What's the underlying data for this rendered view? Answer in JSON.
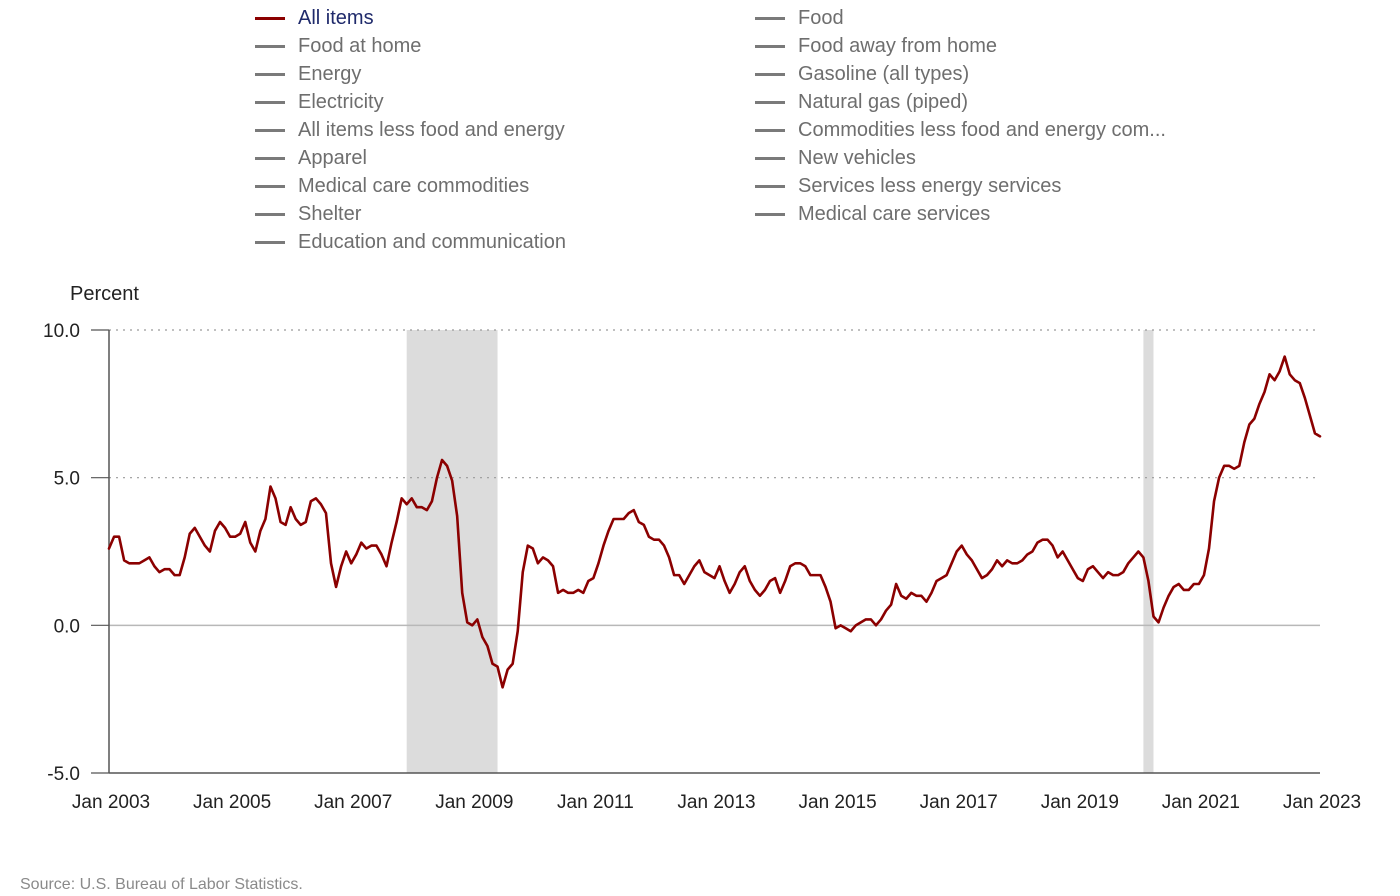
{
  "legend": [
    {
      "label": "All items",
      "active": true
    },
    {
      "label": "Food at home",
      "active": false
    },
    {
      "label": "Energy",
      "active": false
    },
    {
      "label": "Electricity",
      "active": false
    },
    {
      "label": "All items less food and energy",
      "active": false
    },
    {
      "label": "Apparel",
      "active": false
    },
    {
      "label": "Medical care commodities",
      "active": false
    },
    {
      "label": "Shelter",
      "active": false
    },
    {
      "label": "Education and communication",
      "active": false
    },
    {
      "label": "Food",
      "active": false
    },
    {
      "label": "Food away from home",
      "active": false
    },
    {
      "label": "Gasoline (all types)",
      "active": false
    },
    {
      "label": "Natural gas (piped)",
      "active": false
    },
    {
      "label": "Commodities less food and energy com...",
      "active": false
    },
    {
      "label": "New vehicles",
      "active": false
    },
    {
      "label": "Services less energy services",
      "active": false
    },
    {
      "label": "Medical care services",
      "active": false
    }
  ],
  "source": "Source: U.S. Bureau of Labor Statistics.",
  "colors": {
    "series": "#8b0000",
    "legend_inactive": "#7a7a7a",
    "recession_shade": "#dcdcdc",
    "gridline": "#9a9a9a",
    "zero_line": "#b8b8b8"
  },
  "chart_data": {
    "type": "line",
    "ylabel": "Percent",
    "ylim": [
      -5,
      10
    ],
    "yticks": [
      {
        "value": 10,
        "label": "10.0"
      },
      {
        "value": 5,
        "label": "5.0"
      },
      {
        "value": 0,
        "label": "0.0"
      },
      {
        "value": -5,
        "label": "-5.0"
      }
    ],
    "xlim": [
      "2003-01",
      "2023-01"
    ],
    "xticks": [
      "Jan 2003",
      "Jan 2005",
      "Jan 2007",
      "Jan 2009",
      "Jan 2011",
      "Jan 2013",
      "Jan 2015",
      "Jan 2017",
      "Jan 2019",
      "Jan 2021",
      "Jan 2023"
    ],
    "grid": "horizontal dotted at 5.0 and 10.0",
    "recessions": [
      {
        "start": "2007-12",
        "end": "2009-06"
      },
      {
        "start": "2020-02",
        "end": "2020-04"
      }
    ],
    "series": [
      {
        "name": "All items",
        "x": [
          "2003-01",
          "2003-02",
          "2003-03",
          "2003-04",
          "2003-05",
          "2003-06",
          "2003-07",
          "2003-08",
          "2003-09",
          "2003-10",
          "2003-11",
          "2003-12",
          "2004-01",
          "2004-02",
          "2004-03",
          "2004-04",
          "2004-05",
          "2004-06",
          "2004-07",
          "2004-08",
          "2004-09",
          "2004-10",
          "2004-11",
          "2004-12",
          "2005-01",
          "2005-02",
          "2005-03",
          "2005-04",
          "2005-05",
          "2005-06",
          "2005-07",
          "2005-08",
          "2005-09",
          "2005-10",
          "2005-11",
          "2005-12",
          "2006-01",
          "2006-02",
          "2006-03",
          "2006-04",
          "2006-05",
          "2006-06",
          "2006-07",
          "2006-08",
          "2006-09",
          "2006-10",
          "2006-11",
          "2006-12",
          "2007-01",
          "2007-02",
          "2007-03",
          "2007-04",
          "2007-05",
          "2007-06",
          "2007-07",
          "2007-08",
          "2007-09",
          "2007-10",
          "2007-11",
          "2007-12",
          "2008-01",
          "2008-02",
          "2008-03",
          "2008-04",
          "2008-05",
          "2008-06",
          "2008-07",
          "2008-08",
          "2008-09",
          "2008-10",
          "2008-11",
          "2008-12",
          "2009-01",
          "2009-02",
          "2009-03",
          "2009-04",
          "2009-05",
          "2009-06",
          "2009-07",
          "2009-08",
          "2009-09",
          "2009-10",
          "2009-11",
          "2009-12",
          "2010-01",
          "2010-02",
          "2010-03",
          "2010-04",
          "2010-05",
          "2010-06",
          "2010-07",
          "2010-08",
          "2010-09",
          "2010-10",
          "2010-11",
          "2010-12",
          "2011-01",
          "2011-02",
          "2011-03",
          "2011-04",
          "2011-05",
          "2011-06",
          "2011-07",
          "2011-08",
          "2011-09",
          "2011-10",
          "2011-11",
          "2011-12",
          "2012-01",
          "2012-02",
          "2012-03",
          "2012-04",
          "2012-05",
          "2012-06",
          "2012-07",
          "2012-08",
          "2012-09",
          "2012-10",
          "2012-11",
          "2012-12",
          "2013-01",
          "2013-02",
          "2013-03",
          "2013-04",
          "2013-05",
          "2013-06",
          "2013-07",
          "2013-08",
          "2013-09",
          "2013-10",
          "2013-11",
          "2013-12",
          "2014-01",
          "2014-02",
          "2014-03",
          "2014-04",
          "2014-05",
          "2014-06",
          "2014-07",
          "2014-08",
          "2014-09",
          "2014-10",
          "2014-11",
          "2014-12",
          "2015-01",
          "2015-02",
          "2015-03",
          "2015-04",
          "2015-05",
          "2015-06",
          "2015-07",
          "2015-08",
          "2015-09",
          "2015-10",
          "2015-11",
          "2015-12",
          "2016-01",
          "2016-02",
          "2016-03",
          "2016-04",
          "2016-05",
          "2016-06",
          "2016-07",
          "2016-08",
          "2016-09",
          "2016-10",
          "2016-11",
          "2016-12",
          "2017-01",
          "2017-02",
          "2017-03",
          "2017-04",
          "2017-05",
          "2017-06",
          "2017-07",
          "2017-08",
          "2017-09",
          "2017-10",
          "2017-11",
          "2017-12",
          "2018-01",
          "2018-02",
          "2018-03",
          "2018-04",
          "2018-05",
          "2018-06",
          "2018-07",
          "2018-08",
          "2018-09",
          "2018-10",
          "2018-11",
          "2018-12",
          "2019-01",
          "2019-02",
          "2019-03",
          "2019-04",
          "2019-05",
          "2019-06",
          "2019-07",
          "2019-08",
          "2019-09",
          "2019-10",
          "2019-11",
          "2019-12",
          "2020-01",
          "2020-02",
          "2020-03",
          "2020-04",
          "2020-05",
          "2020-06",
          "2020-07",
          "2020-08",
          "2020-09",
          "2020-10",
          "2020-11",
          "2020-12",
          "2021-01",
          "2021-02",
          "2021-03",
          "2021-04",
          "2021-05",
          "2021-06",
          "2021-07",
          "2021-08",
          "2021-09",
          "2021-10",
          "2021-11",
          "2021-12",
          "2022-01",
          "2022-02",
          "2022-03",
          "2022-04",
          "2022-05",
          "2022-06",
          "2022-07",
          "2022-08",
          "2022-09",
          "2022-10",
          "2022-11",
          "2022-12",
          "2023-01"
        ],
        "values": [
          2.6,
          3.0,
          3.0,
          2.2,
          2.1,
          2.1,
          2.1,
          2.2,
          2.3,
          2.0,
          1.8,
          1.9,
          1.9,
          1.7,
          1.7,
          2.3,
          3.1,
          3.3,
          3.0,
          2.7,
          2.5,
          3.2,
          3.5,
          3.3,
          3.0,
          3.0,
          3.1,
          3.5,
          2.8,
          2.5,
          3.2,
          3.6,
          4.7,
          4.3,
          3.5,
          3.4,
          4.0,
          3.6,
          3.4,
          3.5,
          4.2,
          4.3,
          4.1,
          3.8,
          2.1,
          1.3,
          2.0,
          2.5,
          2.1,
          2.4,
          2.8,
          2.6,
          2.7,
          2.7,
          2.4,
          2.0,
          2.8,
          3.5,
          4.3,
          4.1,
          4.3,
          4.0,
          4.0,
          3.9,
          4.2,
          5.0,
          5.6,
          5.4,
          4.9,
          3.7,
          1.1,
          0.1,
          0.0,
          0.2,
          -0.4,
          -0.7,
          -1.3,
          -1.4,
          -2.1,
          -1.5,
          -1.3,
          -0.2,
          1.8,
          2.7,
          2.6,
          2.1,
          2.3,
          2.2,
          2.0,
          1.1,
          1.2,
          1.1,
          1.1,
          1.2,
          1.1,
          1.5,
          1.6,
          2.1,
          2.7,
          3.2,
          3.6,
          3.6,
          3.6,
          3.8,
          3.9,
          3.5,
          3.4,
          3.0,
          2.9,
          2.9,
          2.7,
          2.3,
          1.7,
          1.7,
          1.4,
          1.7,
          2.0,
          2.2,
          1.8,
          1.7,
          1.6,
          2.0,
          1.5,
          1.1,
          1.4,
          1.8,
          2.0,
          1.5,
          1.2,
          1.0,
          1.2,
          1.5,
          1.6,
          1.1,
          1.5,
          2.0,
          2.1,
          2.1,
          2.0,
          1.7,
          1.7,
          1.7,
          1.3,
          0.8,
          -0.1,
          0.0,
          -0.1,
          -0.2,
          0.0,
          0.1,
          0.2,
          0.2,
          0.0,
          0.2,
          0.5,
          0.7,
          1.4,
          1.0,
          0.9,
          1.1,
          1.0,
          1.0,
          0.8,
          1.1,
          1.5,
          1.6,
          1.7,
          2.1,
          2.5,
          2.7,
          2.4,
          2.2,
          1.9,
          1.6,
          1.7,
          1.9,
          2.2,
          2.0,
          2.2,
          2.1,
          2.1,
          2.2,
          2.4,
          2.5,
          2.8,
          2.9,
          2.9,
          2.7,
          2.3,
          2.5,
          2.2,
          1.9,
          1.6,
          1.5,
          1.9,
          2.0,
          1.8,
          1.6,
          1.8,
          1.7,
          1.7,
          1.8,
          2.1,
          2.3,
          2.5,
          2.3,
          1.5,
          0.3,
          0.1,
          0.6,
          1.0,
          1.3,
          1.4,
          1.2,
          1.2,
          1.4,
          1.4,
          1.7,
          2.6,
          4.2,
          5.0,
          5.4,
          5.4,
          5.3,
          5.4,
          6.2,
          6.8,
          7.0,
          7.5,
          7.9,
          8.5,
          8.3,
          8.6,
          9.1,
          8.5,
          8.3,
          8.2,
          7.7,
          7.1,
          6.5,
          6.4
        ]
      }
    ]
  }
}
